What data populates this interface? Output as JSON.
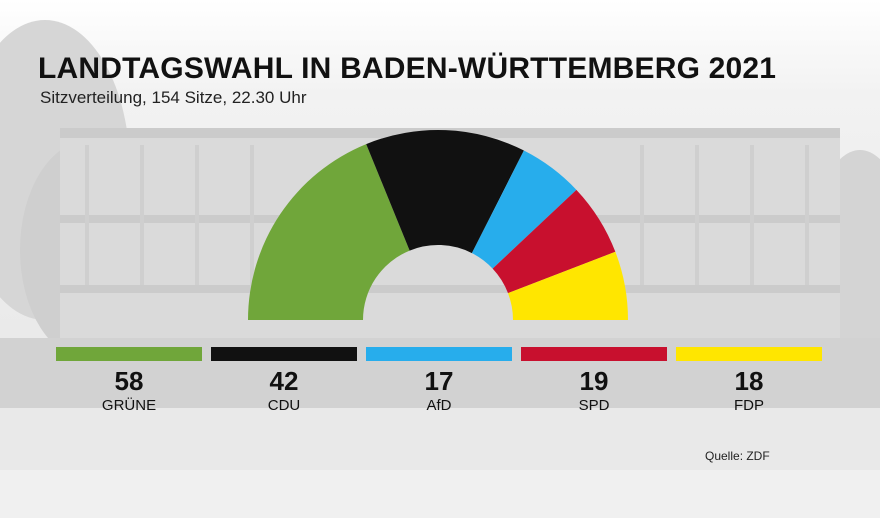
{
  "chart_data": {
    "type": "pie",
    "subtype": "parliament-semicircle",
    "title": "LANDTAGSWAHL IN BADEN-WÜRTTEMBERG 2021",
    "subtitle": "Sitzverteilung, 154 Sitze, 22.30 Uhr",
    "total_seats": 154,
    "series": [
      {
        "name": "GRÜNE",
        "value": 58,
        "color": "#70a63a"
      },
      {
        "name": "CDU",
        "value": 42,
        "color": "#111111"
      },
      {
        "name": "AfD",
        "value": 17,
        "color": "#27adec"
      },
      {
        "name": "SPD",
        "value": 19,
        "color": "#c8102e"
      },
      {
        "name": "FDP",
        "value": 18,
        "color": "#ffe600"
      }
    ],
    "source": "Quelle: ZDF"
  }
}
